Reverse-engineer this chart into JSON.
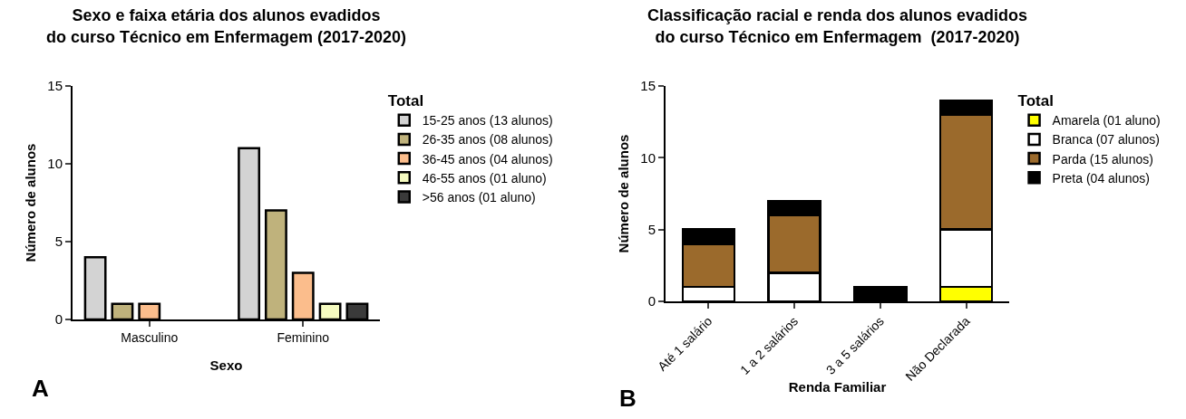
{
  "chart_data": [
    {
      "type": "bar",
      "title": "Sexo e faixa etária dos alunos evadidos\ndo curso Técnico em Enfermagem (2017-2020)",
      "xlabel": "Sexo",
      "ylabel": "Número de alunos",
      "legend_title": "Total",
      "categories": [
        "Masculino",
        "Feminino"
      ],
      "ylim": [
        0,
        15
      ],
      "yticks": [
        0,
        5,
        10,
        15
      ],
      "grid": false,
      "legend": "right",
      "annotations": [
        "A"
      ],
      "series": [
        {
          "name": "15-25 anos (13 alunos)",
          "color": "#d3d3d3",
          "values": [
            4,
            11
          ]
        },
        {
          "name": "26-35 anos (08 alunos)",
          "color": "#bfb27c",
          "values": [
            1,
            7
          ]
        },
        {
          "name": "36-45 anos (04 alunos)",
          "color": "#fbbd8c",
          "values": [
            1,
            3
          ]
        },
        {
          "name": "46-55 anos (01 aluno)",
          "color": "#f5fbc0",
          "values": [
            null,
            1
          ]
        },
        {
          "name": ">56 anos (01 aluno)",
          "color": "#3a3a3a",
          "values": [
            null,
            1
          ]
        }
      ]
    },
    {
      "type": "bar",
      "stacked": true,
      "title": "Classificação racial e renda dos alunos evadidos\ndo curso Técnico em Enfermagem  (2017-2020)",
      "xlabel": "Renda Familiar",
      "ylabel": "Número de alunos",
      "legend_title": "Total",
      "categories": [
        "Até 1 salário",
        "1 a 2 salários",
        "3 a 5 salários",
        "Não Declarada"
      ],
      "ylim": [
        0,
        15
      ],
      "yticks": [
        0,
        5,
        10,
        15
      ],
      "grid": false,
      "legend": "right",
      "annotations": [
        "B"
      ],
      "series": [
        {
          "name": "Amarela (01 aluno)",
          "color": "#ffff00",
          "values": [
            0,
            0,
            0,
            1
          ]
        },
        {
          "name": "Branca (07 alunos)",
          "color": "#ffffff",
          "values": [
            1,
            2,
            0,
            4
          ]
        },
        {
          "name": "Parda (15 alunos)",
          "color": "#9b6a2c",
          "values": [
            3,
            4,
            0,
            8
          ]
        },
        {
          "name": "Preta (04 alunos)",
          "color": "#000000",
          "values": [
            1,
            1,
            1,
            1
          ]
        }
      ]
    }
  ]
}
